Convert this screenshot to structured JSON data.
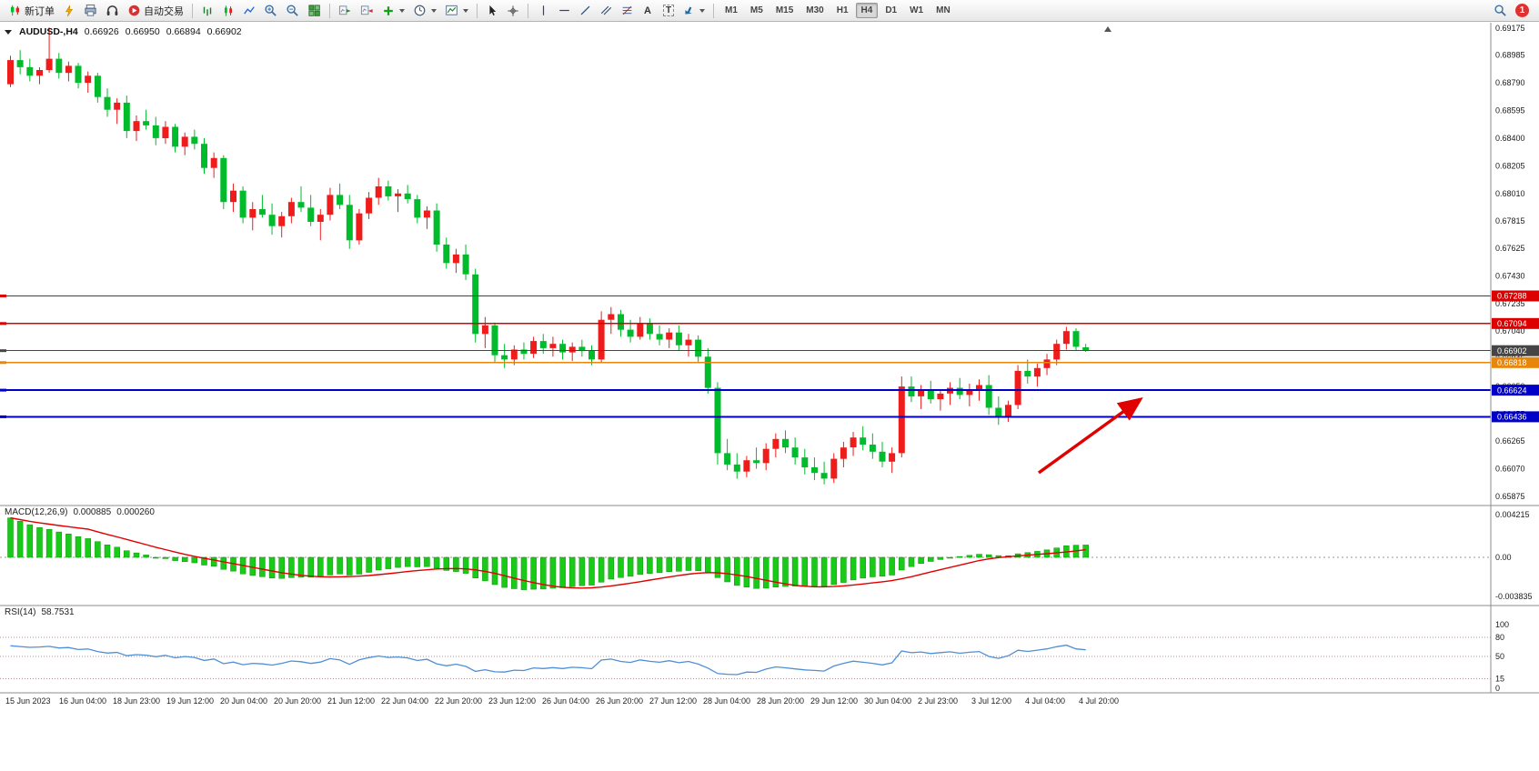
{
  "toolbar": {
    "new_order": "新订单",
    "autotrading": "自动交易",
    "text_tool": "A",
    "label_tool": "T",
    "timeframes": [
      "M1",
      "M5",
      "M15",
      "M30",
      "H1",
      "H4",
      "D1",
      "W1",
      "MN"
    ],
    "active_timeframe": "H4",
    "badge_count": "1"
  },
  "chart_window": {
    "symbol": "AUDUSD-,H4",
    "open": "0.66926",
    "high": "0.66950",
    "low": "0.66894",
    "close": "0.66902"
  },
  "chart_data": {
    "type": "candlestick",
    "symbol": "AUDUSD-",
    "timeframe": "H4",
    "colors": {
      "up": "#ef1c1c",
      "down": "#00bb2c",
      "background": "#ffffff",
      "axis_text": "#1a1a1a"
    },
    "price_axis": [
      "0.69175",
      "0.68985",
      "0.68790",
      "0.68595",
      "0.68400",
      "0.68205",
      "0.68010",
      "0.67815",
      "0.67625",
      "0.67430",
      "0.67235",
      "0.67040",
      "0.66845",
      "0.66650",
      "0.66455",
      "0.66265",
      "0.66070",
      "0.65875"
    ],
    "levels": [
      {
        "price": "0.67288",
        "color": "#dd0000",
        "width": 1.2
      },
      {
        "price": "0.67094",
        "color": "#dd0000",
        "width": 1.2
      },
      {
        "price": "0.66902",
        "color": "#454545",
        "width": 1
      },
      {
        "price": "0.66818",
        "color": "#e8860b",
        "width": 1.4
      },
      {
        "price": "0.66624",
        "color": "#0000c8",
        "width": 1.8
      },
      {
        "price": "0.66436",
        "color": "#0000c8",
        "width": 1.8
      }
    ],
    "candles": [
      [
        0.6878,
        0.6898,
        0.6876,
        0.6895
      ],
      [
        0.6895,
        0.6902,
        0.6885,
        0.689
      ],
      [
        0.689,
        0.6896,
        0.688,
        0.6884
      ],
      [
        0.6884,
        0.689,
        0.6878,
        0.6888
      ],
      [
        0.6888,
        0.6918,
        0.6886,
        0.6896
      ],
      [
        0.6896,
        0.69,
        0.6882,
        0.6886
      ],
      [
        0.6886,
        0.6894,
        0.688,
        0.6891
      ],
      [
        0.6891,
        0.6893,
        0.6875,
        0.6879
      ],
      [
        0.6879,
        0.6887,
        0.6872,
        0.6884
      ],
      [
        0.6884,
        0.6886,
        0.6865,
        0.6869
      ],
      [
        0.6869,
        0.6875,
        0.6855,
        0.686
      ],
      [
        0.686,
        0.6868,
        0.685,
        0.6865
      ],
      [
        0.6865,
        0.687,
        0.684,
        0.6845
      ],
      [
        0.6845,
        0.6856,
        0.6838,
        0.6852
      ],
      [
        0.6852,
        0.686,
        0.6846,
        0.6849
      ],
      [
        0.6849,
        0.6855,
        0.6835,
        0.684
      ],
      [
        0.684,
        0.6852,
        0.6836,
        0.6848
      ],
      [
        0.6848,
        0.685,
        0.683,
        0.6834
      ],
      [
        0.6834,
        0.6844,
        0.6828,
        0.6841
      ],
      [
        0.6841,
        0.6846,
        0.6832,
        0.6836
      ],
      [
        0.6836,
        0.684,
        0.6815,
        0.6819
      ],
      [
        0.6819,
        0.683,
        0.6812,
        0.6826
      ],
      [
        0.6826,
        0.6828,
        0.679,
        0.6795
      ],
      [
        0.6795,
        0.6808,
        0.6788,
        0.6803
      ],
      [
        0.6803,
        0.6806,
        0.678,
        0.6784
      ],
      [
        0.6784,
        0.6795,
        0.6775,
        0.679
      ],
      [
        0.679,
        0.68,
        0.6784,
        0.6786
      ],
      [
        0.6786,
        0.6794,
        0.6772,
        0.6778
      ],
      [
        0.6778,
        0.6788,
        0.677,
        0.6785
      ],
      [
        0.6785,
        0.6798,
        0.678,
        0.6795
      ],
      [
        0.6795,
        0.6806,
        0.6788,
        0.6791
      ],
      [
        0.6791,
        0.68,
        0.6778,
        0.6781
      ],
      [
        0.6781,
        0.679,
        0.6768,
        0.6786
      ],
      [
        0.6786,
        0.6805,
        0.6782,
        0.68
      ],
      [
        0.68,
        0.6808,
        0.679,
        0.6793
      ],
      [
        0.6793,
        0.68,
        0.6762,
        0.6768
      ],
      [
        0.6768,
        0.679,
        0.6765,
        0.6787
      ],
      [
        0.6787,
        0.6802,
        0.6783,
        0.6798
      ],
      [
        0.6798,
        0.6812,
        0.6793,
        0.6806
      ],
      [
        0.6806,
        0.681,
        0.6796,
        0.6799
      ],
      [
        0.6799,
        0.6804,
        0.6788,
        0.6801
      ],
      [
        0.6801,
        0.6807,
        0.6794,
        0.6797
      ],
      [
        0.6797,
        0.68,
        0.678,
        0.6784
      ],
      [
        0.6784,
        0.6792,
        0.6776,
        0.6789
      ],
      [
        0.6789,
        0.6794,
        0.676,
        0.6765
      ],
      [
        0.6765,
        0.677,
        0.6748,
        0.6752
      ],
      [
        0.6752,
        0.6762,
        0.6745,
        0.6758
      ],
      [
        0.6758,
        0.6765,
        0.674,
        0.6744
      ],
      [
        0.6744,
        0.6748,
        0.6696,
        0.6702
      ],
      [
        0.6702,
        0.6714,
        0.6692,
        0.6708
      ],
      [
        0.6708,
        0.671,
        0.6682,
        0.6687
      ],
      [
        0.6687,
        0.6695,
        0.6678,
        0.6684
      ],
      [
        0.6684,
        0.6694,
        0.668,
        0.6691
      ],
      [
        0.6691,
        0.6696,
        0.6684,
        0.6688
      ],
      [
        0.6688,
        0.67,
        0.6685,
        0.6697
      ],
      [
        0.6697,
        0.6702,
        0.6688,
        0.6692
      ],
      [
        0.6692,
        0.67,
        0.6686,
        0.6695
      ],
      [
        0.6695,
        0.6698,
        0.6684,
        0.6689
      ],
      [
        0.6689,
        0.6696,
        0.6683,
        0.6693
      ],
      [
        0.6693,
        0.6698,
        0.6686,
        0.669
      ],
      [
        0.669,
        0.6694,
        0.668,
        0.6684
      ],
      [
        0.6684,
        0.6718,
        0.6682,
        0.6712
      ],
      [
        0.6712,
        0.6721,
        0.6702,
        0.6716
      ],
      [
        0.6716,
        0.6719,
        0.67,
        0.6705
      ],
      [
        0.6705,
        0.6712,
        0.6696,
        0.67
      ],
      [
        0.67,
        0.6714,
        0.6698,
        0.6709
      ],
      [
        0.6709,
        0.6713,
        0.6698,
        0.6702
      ],
      [
        0.6702,
        0.6708,
        0.6694,
        0.6698
      ],
      [
        0.6698,
        0.6706,
        0.6692,
        0.6703
      ],
      [
        0.6703,
        0.6708,
        0.669,
        0.6694
      ],
      [
        0.6694,
        0.6702,
        0.6686,
        0.6698
      ],
      [
        0.6698,
        0.6701,
        0.6682,
        0.6686
      ],
      [
        0.6686,
        0.6692,
        0.666,
        0.6664
      ],
      [
        0.6664,
        0.6668,
        0.661,
        0.6618
      ],
      [
        0.6618,
        0.6628,
        0.6606,
        0.661
      ],
      [
        0.661,
        0.6618,
        0.66,
        0.6605
      ],
      [
        0.6605,
        0.6616,
        0.6601,
        0.6613
      ],
      [
        0.6613,
        0.6622,
        0.6607,
        0.6611
      ],
      [
        0.6611,
        0.6625,
        0.6606,
        0.6621
      ],
      [
        0.6621,
        0.6632,
        0.6615,
        0.6628
      ],
      [
        0.6628,
        0.6634,
        0.6618,
        0.6622
      ],
      [
        0.6622,
        0.6629,
        0.661,
        0.6615
      ],
      [
        0.6615,
        0.6621,
        0.6603,
        0.6608
      ],
      [
        0.6608,
        0.6615,
        0.6599,
        0.6604
      ],
      [
        0.6604,
        0.6612,
        0.6596,
        0.66
      ],
      [
        0.66,
        0.6618,
        0.6597,
        0.6614
      ],
      [
        0.6614,
        0.6626,
        0.6608,
        0.6622
      ],
      [
        0.6622,
        0.6633,
        0.6616,
        0.6629
      ],
      [
        0.6629,
        0.6637,
        0.662,
        0.6624
      ],
      [
        0.6624,
        0.6632,
        0.6614,
        0.6619
      ],
      [
        0.6619,
        0.6626,
        0.6608,
        0.6612
      ],
      [
        0.6612,
        0.6622,
        0.6604,
        0.6618
      ],
      [
        0.6618,
        0.6672,
        0.6615,
        0.6665
      ],
      [
        0.6665,
        0.6672,
        0.6654,
        0.6658
      ],
      [
        0.6658,
        0.6666,
        0.6649,
        0.6662
      ],
      [
        0.6662,
        0.6669,
        0.6653,
        0.6656
      ],
      [
        0.6656,
        0.6663,
        0.6648,
        0.666
      ],
      [
        0.666,
        0.6668,
        0.6652,
        0.6664
      ],
      [
        0.6664,
        0.6671,
        0.6656,
        0.6659
      ],
      [
        0.6659,
        0.6667,
        0.6651,
        0.6663
      ],
      [
        0.6663,
        0.667,
        0.6655,
        0.6666
      ],
      [
        0.6666,
        0.6673,
        0.6645,
        0.665
      ],
      [
        0.665,
        0.6658,
        0.6638,
        0.6643
      ],
      [
        0.6643,
        0.6655,
        0.664,
        0.6652
      ],
      [
        0.6652,
        0.668,
        0.6649,
        0.6676
      ],
      [
        0.6676,
        0.6684,
        0.6667,
        0.6672
      ],
      [
        0.6672,
        0.6681,
        0.6665,
        0.6678
      ],
      [
        0.6678,
        0.6688,
        0.6673,
        0.6684
      ],
      [
        0.6684,
        0.6698,
        0.668,
        0.6695
      ],
      [
        0.6695,
        0.6707,
        0.6691,
        0.6704
      ],
      [
        0.6704,
        0.6706,
        0.669,
        0.6693
      ],
      [
        0.66926,
        0.6695,
        0.66894,
        0.66902
      ]
    ],
    "macd": {
      "label": "MACD(12,26,9)",
      "value_main": "0.000885",
      "value_signal": "0.000260",
      "axis_labels": [
        "0.004215",
        "0.00",
        "-0.003835"
      ],
      "histogram_color": "#00c400",
      "signal_color": "#e00000"
    },
    "rsi": {
      "label": "RSI(14)",
      "value": "58.7531",
      "axis_labels": [
        "100",
        "80",
        "50",
        "15",
        "0"
      ],
      "level_lines": [
        80,
        50,
        15
      ],
      "line_color": "#4f8fd8"
    },
    "arrow": {
      "color": "#e00000"
    },
    "time_labels": [
      "15 Jun 2023",
      "16 Jun 04:00",
      "18 Jun 23:00",
      "19 Jun 12:00",
      "20 Jun 04:00",
      "20 Jun 20:00",
      "21 Jun 12:00",
      "22 Jun 04:00",
      "22 Jun 20:00",
      "23 Jun 12:00",
      "26 Jun 04:00",
      "26 Jun 20:00",
      "27 Jun 12:00",
      "28 Jun 04:00",
      "28 Jun 20:00",
      "29 Jun 12:00",
      "30 Jun 04:00",
      "2 Jul 23:00",
      "3 Jul 12:00",
      "4 Jul 04:00",
      "4 Jul 20:00"
    ]
  }
}
